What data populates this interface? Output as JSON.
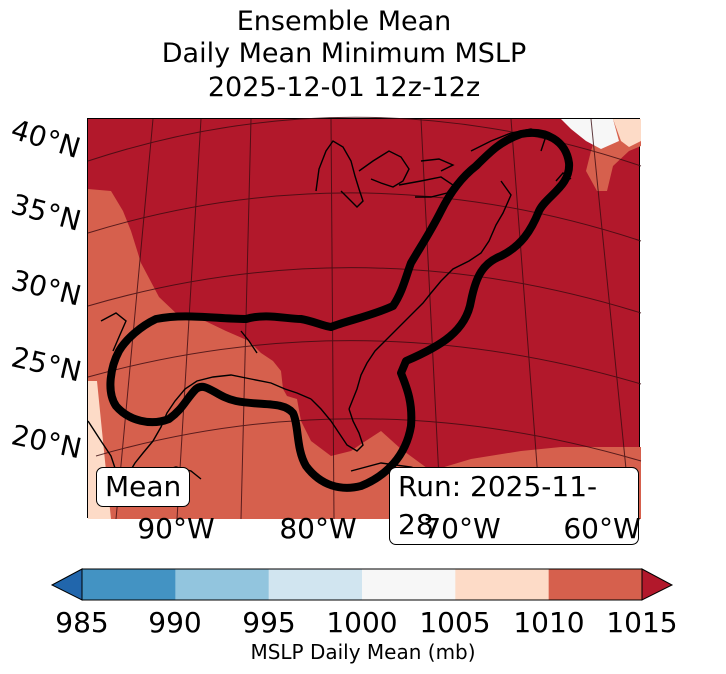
{
  "title": {
    "line1": "Ensemble Mean",
    "line2": "Daily Mean Minimum MSLP",
    "line3": "2025-12-01 12z-12z"
  },
  "map": {
    "lat_labels": [
      "40°N",
      "35°N",
      "30°N",
      "25°N",
      "20°N"
    ],
    "lon_labels": [
      "90°W",
      "80°W",
      "70°W",
      "60°W"
    ],
    "mean_box": "Mean",
    "run_box": "Run: 2025-11-28",
    "colors": {
      "c985_990": "#2166ac",
      "c990_995": "#92c5de",
      "c995_1000": "#d1e5f0",
      "c1000_1005": "#f7f7f7",
      "c1005_1010": "#fddbc7",
      "c1010_1015": "#d6604d",
      "c1015": "#b2182b",
      "contour": "#000000",
      "coast": "#000000"
    }
  },
  "colorbar": {
    "ticks": [
      "985",
      "990",
      "995",
      "1000",
      "1005",
      "1010",
      "1015"
    ],
    "label": "MSLP Daily Mean (mb)",
    "bins": [
      "#4393c3",
      "#92c5de",
      "#d1e5f0",
      "#f7f7f7",
      "#fddbc7",
      "#d6604d"
    ],
    "under_color": "#2166ac",
    "over_color": "#b2182b"
  }
}
